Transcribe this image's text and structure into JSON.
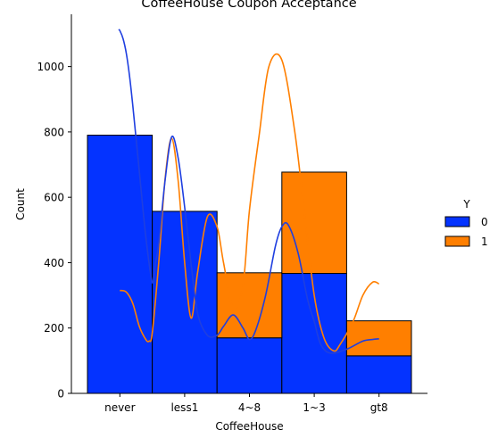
{
  "chart_data": {
    "type": "bar",
    "stacked": true,
    "title": "CoffeeHouse Coupon Acceptance",
    "xlabel": "CoffeeHouse",
    "ylabel": "Count",
    "categories": [
      "never",
      "less1",
      "4~8",
      "1~3",
      "gt8"
    ],
    "ylim": [
      0,
      1160
    ],
    "yticks": [
      0,
      200,
      400,
      600,
      800,
      1000
    ],
    "legend": {
      "title": "Y",
      "placement": "right",
      "entries": [
        "0",
        "1"
      ]
    },
    "series": [
      {
        "name": "0",
        "color": "#0433ff",
        "values": [
          790,
          557,
          170,
          367,
          115
        ]
      },
      {
        "name": "1",
        "color": "#ff7f00",
        "values": [
          0,
          0,
          199,
          310,
          107
        ]
      }
    ],
    "kde": [
      {
        "series": "0",
        "color": "#1f3fe0",
        "x": [
          -0.02,
          0.0,
          0.05,
          0.1,
          0.15,
          0.2,
          0.3,
          0.4,
          0.5,
          0.55,
          0.6,
          0.7,
          0.8,
          0.9,
          1.0,
          1.1,
          1.2,
          1.35,
          1.5,
          1.6,
          1.75,
          1.9,
          2.0,
          2.1,
          2.25,
          2.4,
          2.5,
          2.6,
          2.75,
          2.9,
          3.0,
          3.1,
          3.25,
          3.5,
          3.75,
          3.9,
          4.0
        ],
        "y": [
          1113,
          1110,
          1085,
          1040,
          970,
          880,
          680,
          480,
          340,
          400,
          460,
          655,
          785,
          720,
          570,
          395,
          245,
          178,
          178,
          205,
          240,
          200,
          165,
          195,
          300,
          450,
          510,
          515,
          430,
          285,
          220,
          150,
          123,
          135,
          160,
          165,
          167
        ]
      },
      {
        "series": "1",
        "color": "#ff7f00",
        "x": [
          0.0,
          0.1,
          0.2,
          0.3,
          0.4,
          0.45,
          0.5,
          0.6,
          0.7,
          0.8,
          0.9,
          1.0,
          1.1,
          1.2,
          1.35,
          1.5,
          1.6,
          1.75,
          1.9,
          2.0,
          2.15,
          2.3,
          2.5,
          2.7,
          2.85,
          3.0,
          3.15,
          3.3,
          3.4,
          3.6,
          3.75,
          3.9,
          4.0
        ],
        "y": [
          315,
          310,
          275,
          205,
          165,
          160,
          185,
          400,
          660,
          780,
          650,
          400,
          230,
          370,
          540,
          510,
          400,
          260,
          330,
          560,
          790,
          1000,
          1020,
          800,
          550,
          300,
          170,
          130,
          150,
          220,
          300,
          340,
          335
        ]
      }
    ]
  }
}
